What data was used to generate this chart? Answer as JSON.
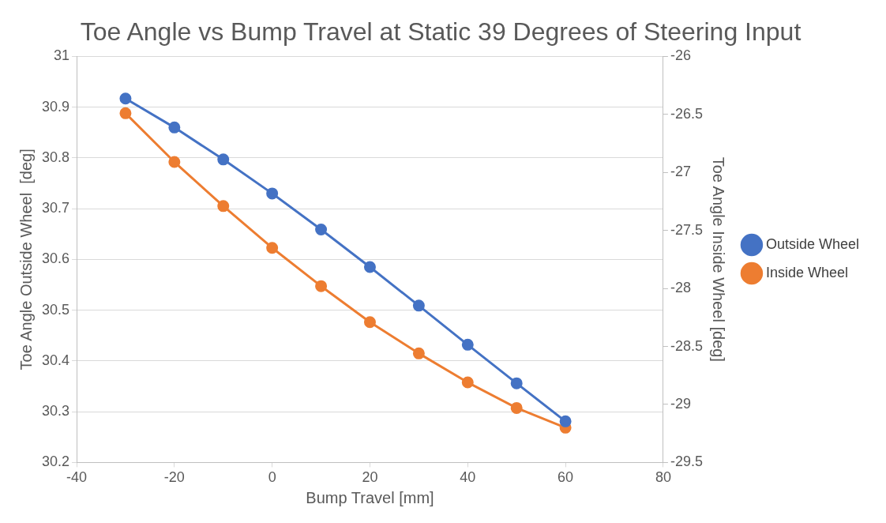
{
  "chart_data": {
    "type": "line",
    "title": "Toe Angle vs Bump Travel at Static 39 Degrees of Steering Input",
    "xlabel": "Bump Travel [mm]",
    "ylabel": "Toe Angle Outside Wheel  [deg]",
    "y2label": "Toe Angle Inside Wheel [deg]",
    "x": [
      -30,
      -20,
      -10,
      0,
      10,
      20,
      30,
      40,
      50,
      60
    ],
    "series": [
      {
        "name": "Outside Wheel",
        "color": "#4472c4",
        "values": [
          30.917,
          30.86,
          30.797,
          30.73,
          30.659,
          30.585,
          30.509,
          30.432,
          30.356,
          30.281
        ]
      },
      {
        "name": "Inside Wheel",
        "color": "#ed7d31",
        "axis": "y2",
        "values": [
          -26.49,
          -26.91,
          -27.29,
          -27.65,
          -27.98,
          -28.29,
          -28.56,
          -28.81,
          -29.03,
          -29.2
        ]
      }
    ],
    "xlim": [
      -40,
      80
    ],
    "xticks": [
      -40,
      -20,
      0,
      20,
      40,
      60,
      80
    ],
    "ylim": [
      30.2,
      31
    ],
    "yticks": [
      30.2,
      30.3,
      30.4,
      30.5,
      30.6,
      30.7,
      30.8,
      30.9,
      31
    ],
    "y2lim": [
      -29.5,
      -26
    ],
    "y2ticks": [
      -29.5,
      -29,
      -28.5,
      -28,
      -27.5,
      -27,
      -26.5,
      -26
    ],
    "grid": "y",
    "legend": "right",
    "marker": "circle",
    "line_style": "solid"
  }
}
